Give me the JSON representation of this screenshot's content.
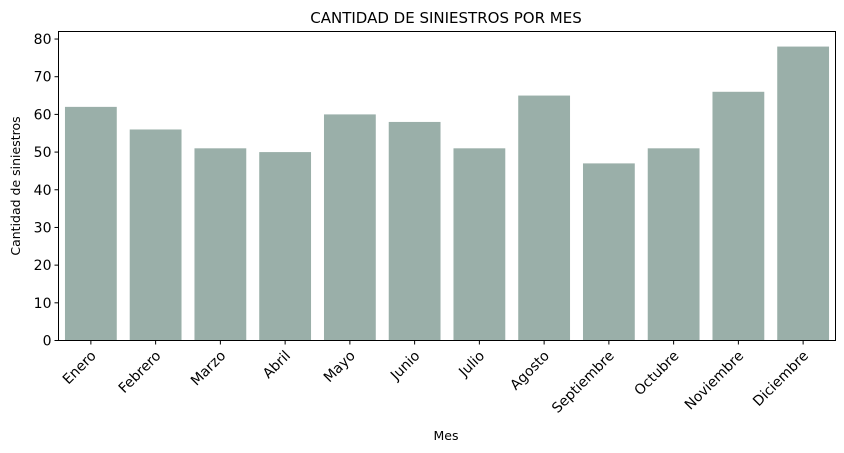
{
  "chart_data": {
    "type": "bar",
    "title": "CANTIDAD DE SINIESTROS POR MES",
    "xlabel": "Mes",
    "ylabel": "Cantidad de siniestros",
    "categories": [
      "Enero",
      "Febrero",
      "Marzo",
      "Abril",
      "Mayo",
      "Junio",
      "Julio",
      "Agosto",
      "Septiembre",
      "Octubre",
      "Noviembre",
      "Diciembre"
    ],
    "values": [
      62,
      56,
      51,
      50,
      60,
      58,
      51,
      65,
      47,
      51,
      66,
      78
    ],
    "ylim": [
      0,
      82
    ],
    "yticks": [
      0,
      10,
      20,
      30,
      40,
      50,
      60,
      70,
      80
    ],
    "grid": false,
    "legend": "none",
    "bar_color": "#9aafa9"
  }
}
